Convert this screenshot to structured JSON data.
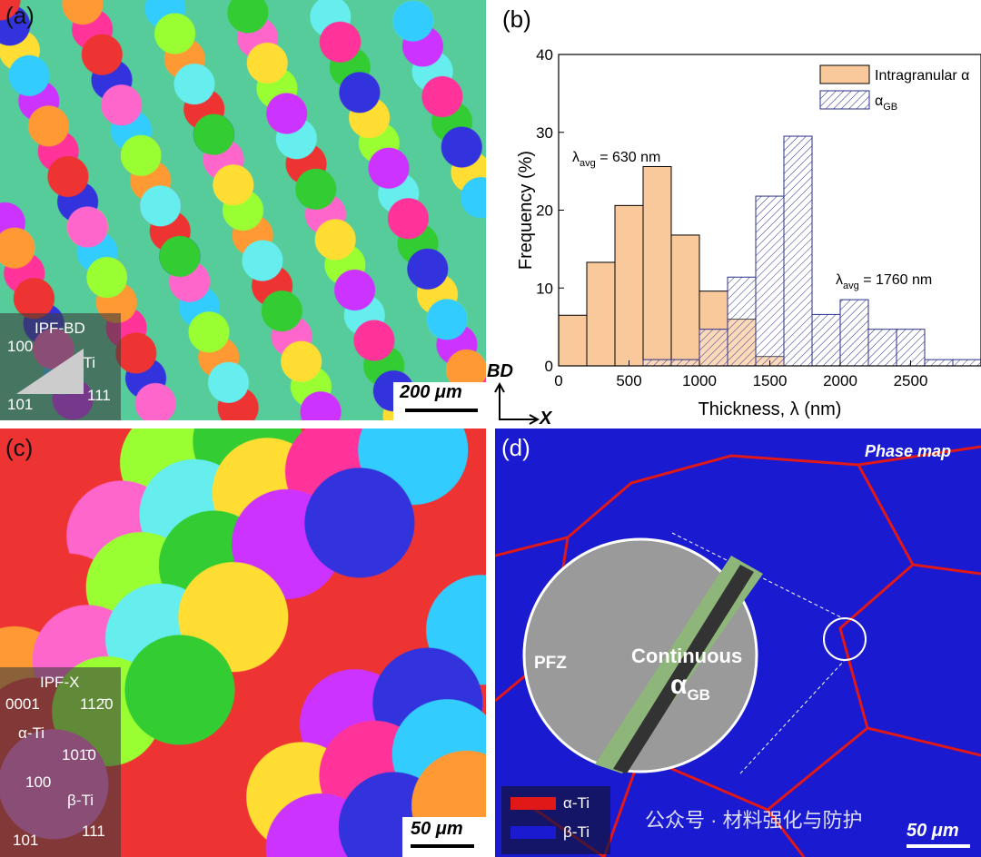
{
  "panels": {
    "a": {
      "label": "(a)",
      "legend_title": "IPF-BD",
      "corner_top": "100",
      "phase": "β-Ti",
      "corner_left": "101",
      "corner_right": "111",
      "scale_bar": "200 μm"
    },
    "axes_note": {
      "vertical": "BD",
      "horizontal": "X"
    },
    "c": {
      "label": "(c)",
      "legend_title": "IPF-X",
      "corner_left": "0001",
      "corner_right": "112̄0",
      "phase": "α-Ti",
      "corner_bottom": "101̄0",
      "beta_top": "100",
      "beta_phase": "β-Ti",
      "beta_left": "101",
      "beta_right": "111",
      "scale_bar": "50 μm"
    },
    "d": {
      "label": "(d)",
      "title": "Phase map",
      "pfz": "PFZ",
      "continuous": "Continuous",
      "agb": "α",
      "agb_sub": "GB",
      "legend": [
        "α-Ti",
        "β-Ti"
      ],
      "scale_bar": "50 μm",
      "watermark": "公众号 · 材料强化与防护"
    }
  },
  "chart_data": {
    "type": "histogram",
    "label": "(b)",
    "x_label": "Thickness, λ (nm)",
    "y_label": "Frequency (%)",
    "bins": [
      0,
      200,
      400,
      600,
      800,
      1000,
      1200,
      1400,
      1600,
      1800,
      2000,
      2200,
      2400,
      2600,
      2800,
      3000
    ],
    "series": [
      {
        "name": "Intragranular α",
        "color": "#f9c89b",
        "values": [
          6.5,
          13.3,
          20.6,
          25.6,
          16.8,
          9.6,
          6.0,
          1.2,
          0,
          0,
          0,
          0,
          0,
          0,
          0
        ]
      },
      {
        "name": "α",
        "name_sub": "GB",
        "color": "#2a2f8a",
        "values": [
          0,
          0,
          0,
          0.8,
          0.8,
          4.7,
          11.4,
          21.8,
          29.5,
          6.6,
          8.5,
          4.7,
          4.7,
          0.8,
          0.8
        ]
      }
    ],
    "annotations": [
      {
        "symbol": "λ",
        "sub": "avg",
        "text": " =  630 nm"
      },
      {
        "symbol": "λ",
        "sub": "avg",
        "text": " = 1760 nm"
      }
    ],
    "xlim": [
      0,
      3000
    ],
    "ylim": [
      0,
      40
    ],
    "xticks": [
      0,
      500,
      1000,
      1500,
      2000,
      2500
    ],
    "yticks": [
      0,
      10,
      20,
      30,
      40
    ]
  }
}
